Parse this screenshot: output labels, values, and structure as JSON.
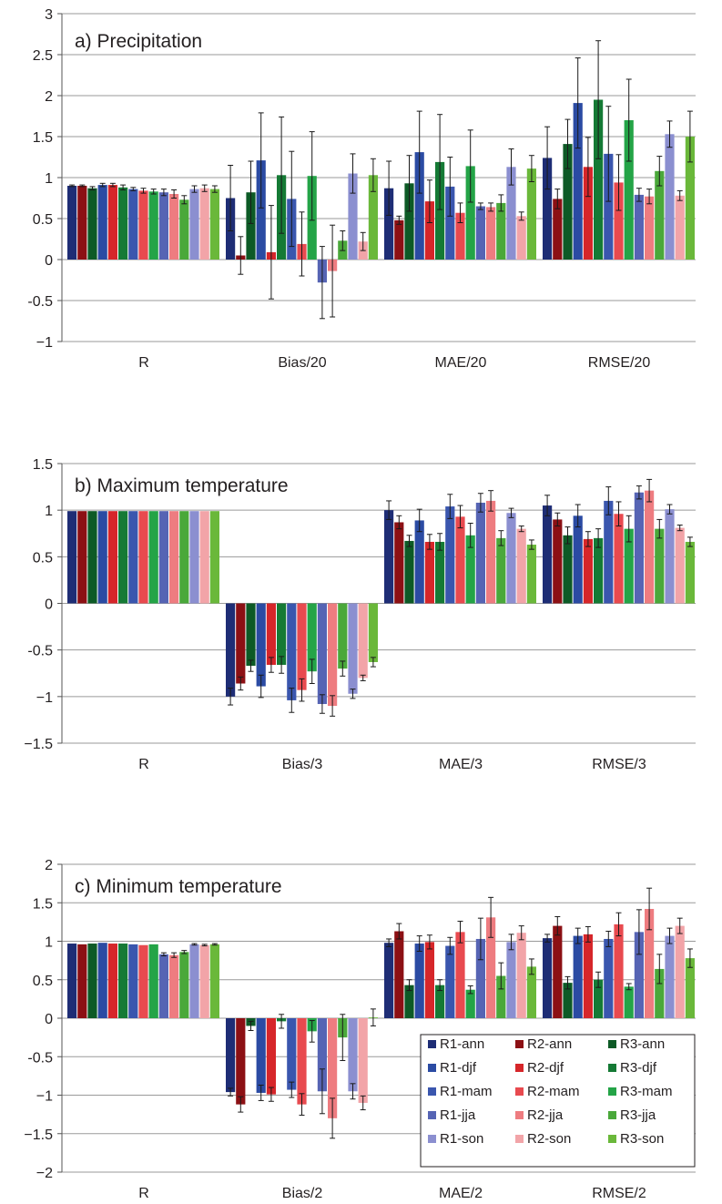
{
  "figure": {
    "legend": [
      "R1-ann",
      "R2-ann",
      "R3-ann",
      "R1-djf",
      "R2-djf",
      "R3-djf",
      "R1-mam",
      "R2-mam",
      "R3-mam",
      "R1-jja",
      "R2-jja",
      "R3-jja",
      "R1-son",
      "R2-son",
      "R3-son"
    ]
  },
  "colors": {
    "series": [
      "#1e2d75",
      "#8c1014",
      "#0d5a26",
      "#2b4ba3",
      "#d6262a",
      "#157a35",
      "#3a56ae",
      "#e84a4f",
      "#24a447",
      "#5664b4",
      "#ee7c80",
      "#4aa83a",
      "#8b8fd0",
      "#f2a4a8",
      "#6ab83a"
    ]
  },
  "chart_data": [
    {
      "type": "bar",
      "title": "a) Precipitation",
      "categories": [
        "R",
        "Bias/20",
        "MAE/20",
        "RMSE/20"
      ],
      "ylim": [
        -1,
        3
      ],
      "yticks": [
        "3",
        "2.5",
        "2",
        "1.5",
        "1",
        "0.5",
        "0",
        "-0.5",
        "−1"
      ],
      "grid": true,
      "series": [
        {
          "name": "R1-ann",
          "values": [
            0.9,
            0.75,
            0.87,
            1.24
          ],
          "errors": [
            0.01,
            0.4,
            0.33,
            0.38
          ]
        },
        {
          "name": "R2-ann",
          "values": [
            0.9,
            0.05,
            0.48,
            0.74
          ],
          "errors": [
            0.01,
            0.23,
            0.05,
            0.12
          ]
        },
        {
          "name": "R3-ann",
          "values": [
            0.87,
            0.82,
            0.93,
            1.41
          ],
          "errors": [
            0.02,
            0.38,
            0.34,
            0.3
          ]
        },
        {
          "name": "R1-djf",
          "values": [
            0.91,
            1.21,
            1.31,
            1.91
          ],
          "errors": [
            0.02,
            0.58,
            0.5,
            0.55
          ]
        },
        {
          "name": "R2-djf",
          "values": [
            0.91,
            0.09,
            0.71,
            1.13
          ],
          "errors": [
            0.02,
            0.57,
            0.26,
            0.36
          ]
        },
        {
          "name": "R3-djf",
          "values": [
            0.88,
            1.03,
            1.19,
            1.95
          ],
          "errors": [
            0.03,
            0.71,
            0.58,
            0.72
          ]
        },
        {
          "name": "R1-mam",
          "values": [
            0.86,
            0.74,
            0.89,
            1.29
          ],
          "errors": [
            0.02,
            0.58,
            0.36,
            0.58
          ]
        },
        {
          "name": "R2-mam",
          "values": [
            0.84,
            0.19,
            0.57,
            0.94
          ],
          "errors": [
            0.03,
            0.39,
            0.12,
            0.34
          ]
        },
        {
          "name": "R3-mam",
          "values": [
            0.83,
            1.02,
            1.14,
            1.7
          ],
          "errors": [
            0.03,
            0.54,
            0.44,
            0.5
          ]
        },
        {
          "name": "R1-jja",
          "values": [
            0.82,
            -0.28,
            0.65,
            0.79
          ],
          "errors": [
            0.04,
            0.44,
            0.04,
            0.08
          ]
        },
        {
          "name": "R2-jja",
          "values": [
            0.8,
            -0.14,
            0.64,
            0.77
          ],
          "errors": [
            0.05,
            0.56,
            0.05,
            0.09
          ]
        },
        {
          "name": "R3-jja",
          "values": [
            0.73,
            0.23,
            0.69,
            1.08
          ],
          "errors": [
            0.05,
            0.12,
            0.1,
            0.18
          ]
        },
        {
          "name": "R1-son",
          "values": [
            0.86,
            1.05,
            1.13,
            1.53
          ],
          "errors": [
            0.04,
            0.24,
            0.22,
            0.16
          ]
        },
        {
          "name": "R2-son",
          "values": [
            0.87,
            0.22,
            0.53,
            0.78
          ],
          "errors": [
            0.04,
            0.11,
            0.05,
            0.06
          ]
        },
        {
          "name": "R3-son",
          "values": [
            0.86,
            1.03,
            1.11,
            1.5
          ],
          "errors": [
            0.04,
            0.2,
            0.16,
            0.31
          ]
        }
      ]
    },
    {
      "type": "bar",
      "title": "b) Maximum temperature",
      "categories": [
        "R",
        "Bias/3",
        "MAE/3",
        "RMSE/3"
      ],
      "ylim": [
        -1.5,
        1.5
      ],
      "yticks": [
        "1.5",
        "1",
        "0.5",
        "0",
        "-0.5",
        "−1",
        "−1.5"
      ],
      "grid": true,
      "series": [
        {
          "name": "R1-ann",
          "values": [
            0.99,
            -1.0,
            1.0,
            1.05
          ],
          "errors": [
            0.003,
            0.09,
            0.1,
            0.11
          ]
        },
        {
          "name": "R2-ann",
          "values": [
            0.99,
            -0.86,
            0.87,
            0.9
          ],
          "errors": [
            0.003,
            0.07,
            0.07,
            0.07
          ]
        },
        {
          "name": "R3-ann",
          "values": [
            0.99,
            -0.67,
            0.67,
            0.73
          ],
          "errors": [
            0.003,
            0.06,
            0.06,
            0.09
          ]
        },
        {
          "name": "R1-djf",
          "values": [
            0.99,
            -0.89,
            0.89,
            0.94
          ],
          "errors": [
            0.003,
            0.12,
            0.12,
            0.12
          ]
        },
        {
          "name": "R2-djf",
          "values": [
            0.99,
            -0.66,
            0.66,
            0.69
          ],
          "errors": [
            0.003,
            0.08,
            0.08,
            0.08
          ]
        },
        {
          "name": "R3-djf",
          "values": [
            0.99,
            -0.66,
            0.66,
            0.7
          ],
          "errors": [
            0.003,
            0.09,
            0.09,
            0.1
          ]
        },
        {
          "name": "R1-mam",
          "values": [
            0.99,
            -1.04,
            1.04,
            1.1
          ],
          "errors": [
            0.003,
            0.13,
            0.13,
            0.15
          ]
        },
        {
          "name": "R2-mam",
          "values": [
            0.99,
            -0.93,
            0.93,
            0.96
          ],
          "errors": [
            0.003,
            0.12,
            0.12,
            0.13
          ]
        },
        {
          "name": "R3-mam",
          "values": [
            0.99,
            -0.73,
            0.73,
            0.8
          ],
          "errors": [
            0.003,
            0.13,
            0.13,
            0.14
          ]
        },
        {
          "name": "R1-jja",
          "values": [
            0.99,
            -1.08,
            1.08,
            1.19
          ],
          "errors": [
            0.003,
            0.1,
            0.1,
            0.07
          ]
        },
        {
          "name": "R2-jja",
          "values": [
            0.99,
            -1.1,
            1.1,
            1.21
          ],
          "errors": [
            0.003,
            0.11,
            0.11,
            0.12
          ]
        },
        {
          "name": "R3-jja",
          "values": [
            0.99,
            -0.7,
            0.7,
            0.8
          ],
          "errors": [
            0.003,
            0.08,
            0.08,
            0.1
          ]
        },
        {
          "name": "R1-son",
          "values": [
            0.99,
            -0.97,
            0.97,
            1.01
          ],
          "errors": [
            0.003,
            0.05,
            0.05,
            0.05
          ]
        },
        {
          "name": "R2-son",
          "values": [
            0.99,
            -0.8,
            0.8,
            0.81
          ],
          "errors": [
            0.003,
            0.03,
            0.03,
            0.03
          ]
        },
        {
          "name": "R3-son",
          "values": [
            0.99,
            -0.63,
            0.63,
            0.66
          ],
          "errors": [
            0.003,
            0.05,
            0.05,
            0.05
          ]
        }
      ]
    },
    {
      "type": "bar",
      "title": "c) Minimum temperature",
      "categories": [
        "R",
        "Bias/2",
        "MAE/2",
        "RMSE/2"
      ],
      "ylim": [
        -2,
        2
      ],
      "yticks": [
        "2",
        "1.5",
        "1",
        "0.5",
        "0",
        "-0.5",
        "−1",
        "−1.5",
        "−2"
      ],
      "grid": true,
      "legend_position": "bottom-right",
      "series": [
        {
          "name": "R1-ann",
          "values": [
            0.97,
            -0.96,
            0.98,
            1.04
          ],
          "errors": [
            0.003,
            0.05,
            0.05,
            0.05
          ]
        },
        {
          "name": "R2-ann",
          "values": [
            0.96,
            -1.12,
            1.13,
            1.2
          ],
          "errors": [
            0.003,
            0.1,
            0.1,
            0.12
          ]
        },
        {
          "name": "R3-ann",
          "values": [
            0.97,
            -0.1,
            0.43,
            0.46
          ],
          "errors": [
            0.003,
            0.06,
            0.07,
            0.08
          ]
        },
        {
          "name": "R1-djf",
          "values": [
            0.98,
            -0.97,
            0.97,
            1.07
          ],
          "errors": [
            0.003,
            0.1,
            0.1,
            0.1
          ]
        },
        {
          "name": "R2-djf",
          "values": [
            0.97,
            -0.99,
            0.99,
            1.09
          ],
          "errors": [
            0.003,
            0.09,
            0.09,
            0.1
          ]
        },
        {
          "name": "R3-djf",
          "values": [
            0.97,
            -0.04,
            0.43,
            0.5
          ],
          "errors": [
            0.003,
            0.09,
            0.07,
            0.1
          ]
        },
        {
          "name": "R1-mam",
          "values": [
            0.96,
            -0.93,
            0.94,
            1.03
          ],
          "errors": [
            0.003,
            0.1,
            0.11,
            0.1
          ]
        },
        {
          "name": "R2-mam",
          "values": [
            0.95,
            -1.12,
            1.12,
            1.22
          ],
          "errors": [
            0.003,
            0.14,
            0.14,
            0.15
          ]
        },
        {
          "name": "R3-mam",
          "values": [
            0.96,
            -0.17,
            0.37,
            0.41
          ],
          "errors": [
            0.003,
            0.14,
            0.05,
            0.04
          ]
        },
        {
          "name": "R1-jja",
          "values": [
            0.83,
            -0.95,
            1.03,
            1.12
          ],
          "errors": [
            0.02,
            0.29,
            0.27,
            0.29
          ]
        },
        {
          "name": "R2-jja",
          "values": [
            0.82,
            -1.3,
            1.31,
            1.42
          ],
          "errors": [
            0.03,
            0.26,
            0.26,
            0.27
          ]
        },
        {
          "name": "R3-jja",
          "values": [
            0.86,
            -0.25,
            0.55,
            0.64
          ],
          "errors": [
            0.02,
            0.3,
            0.17,
            0.19
          ]
        },
        {
          "name": "R1-son",
          "values": [
            0.96,
            -0.95,
            0.99,
            1.07
          ],
          "errors": [
            0.01,
            0.1,
            0.1,
            0.1
          ]
        },
        {
          "name": "R2-son",
          "values": [
            0.95,
            -1.1,
            1.11,
            1.2
          ],
          "errors": [
            0.01,
            0.09,
            0.09,
            0.1
          ]
        },
        {
          "name": "R3-son",
          "values": [
            0.96,
            0.01,
            0.67,
            0.78
          ],
          "errors": [
            0.01,
            0.11,
            0.1,
            0.12
          ]
        }
      ]
    }
  ]
}
